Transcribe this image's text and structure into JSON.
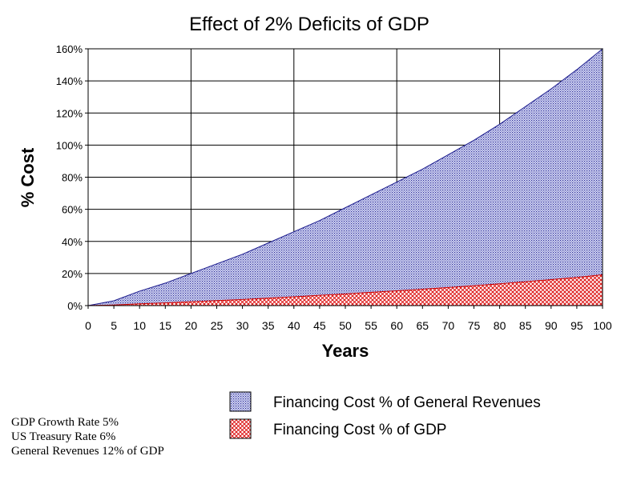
{
  "chart_data": {
    "type": "area",
    "title": "Effect of 2% Deficits of GDP",
    "xlabel": "Years",
    "ylabel": "% Cost",
    "xlim": [
      0,
      100
    ],
    "ylim": [
      0,
      160
    ],
    "x_ticks": [
      0,
      5,
      10,
      15,
      20,
      25,
      30,
      35,
      40,
      45,
      50,
      55,
      60,
      65,
      70,
      75,
      80,
      85,
      90,
      95,
      100
    ],
    "y_ticks": [
      0,
      20,
      40,
      60,
      80,
      100,
      120,
      140,
      160
    ],
    "y_tick_labels": [
      "0%",
      "20%",
      "40%",
      "60%",
      "80%",
      "100%",
      "120%",
      "140%",
      "160%"
    ],
    "grid": {
      "x_every": 20,
      "y_every": 20
    },
    "legend_position": "bottom-right",
    "x": [
      0,
      5,
      10,
      15,
      20,
      25,
      30,
      35,
      40,
      45,
      50,
      55,
      60,
      65,
      70,
      75,
      80,
      85,
      90,
      95,
      100
    ],
    "series": [
      {
        "name": "Financing Cost % of General Revenues",
        "color": "#1a1a8c",
        "pattern": "dots",
        "values": [
          0,
          3,
          9,
          14,
          20,
          26,
          32,
          39,
          46,
          53,
          61,
          69,
          77,
          85,
          94,
          103,
          113,
          124,
          135,
          147,
          160
        ]
      },
      {
        "name": "Financing Cost % of GDP",
        "color": "#cc0000",
        "pattern": "crosshatch",
        "values": [
          0,
          0.4,
          1.1,
          1.7,
          2.4,
          3.1,
          3.8,
          4.7,
          5.5,
          6.4,
          7.3,
          8.3,
          9.2,
          10.2,
          11.3,
          12.4,
          13.6,
          14.9,
          16.2,
          17.6,
          19.2
        ]
      }
    ]
  },
  "notes": [
    "GDP Growth Rate 5%",
    "US Treasury Rate 6%",
    "General Revenues 12% of GDP"
  ]
}
